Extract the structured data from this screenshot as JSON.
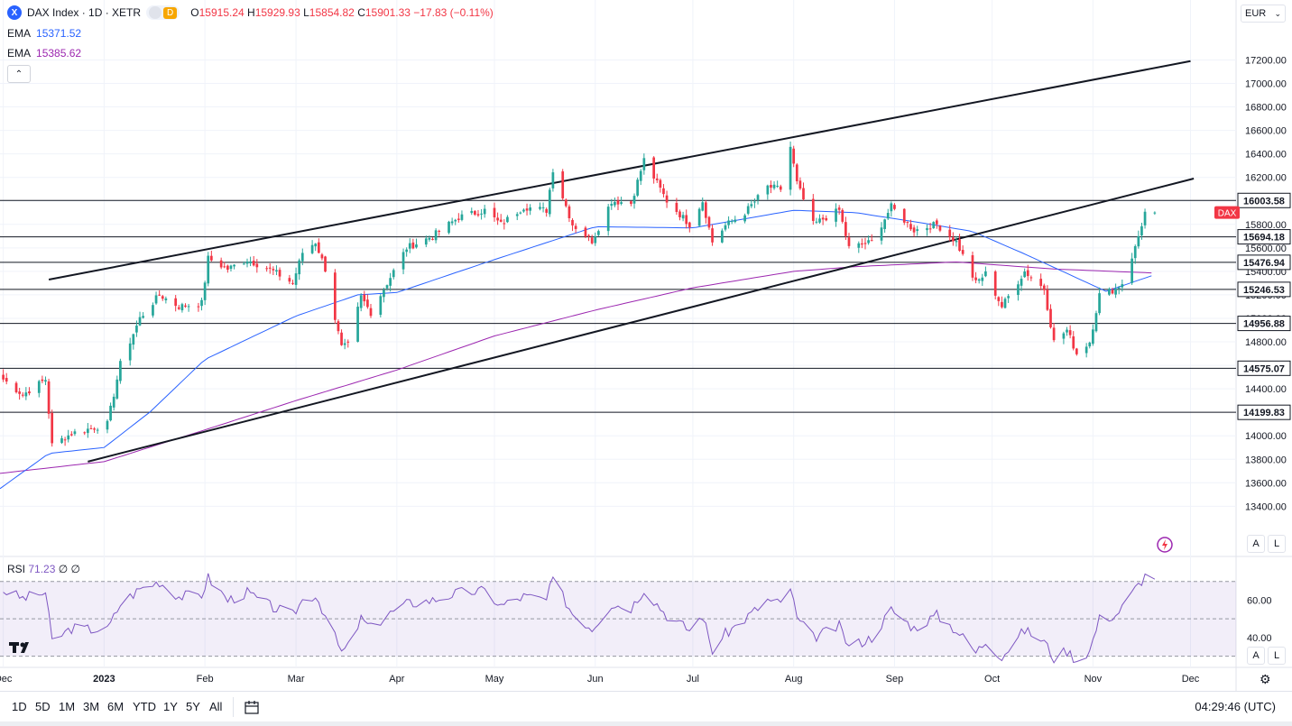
{
  "header": {
    "symbol": "DAX Index · 1D · XETR",
    "logo_letter": "X",
    "badge": "D",
    "ohlc": {
      "o_label": "O",
      "o": "15915.24",
      "h_label": "H",
      "h": "15929.93",
      "l_label": "L",
      "l": "15854.82",
      "c_label": "C",
      "c": "15901.33",
      "change": "−17.83 (−0.11%)"
    },
    "ema1": {
      "label": "EMA",
      "value": "15371.52"
    },
    "ema2": {
      "label": "EMA",
      "value": "15385.62"
    }
  },
  "currency": "EUR",
  "rsi": {
    "label": "RSI",
    "value": "71.23",
    "extra": "∅ ∅"
  },
  "scale_buttons": {
    "auto": "A",
    "log": "L"
  },
  "bottom_bar": {
    "ranges": [
      "1D",
      "5D",
      "1M",
      "3M",
      "6M",
      "YTD",
      "1Y",
      "5Y",
      "All"
    ],
    "time": "04:29:46 (UTC)"
  },
  "colors": {
    "up": "#26a69a",
    "down": "#f23645",
    "ema_fast": "#2962ff",
    "ema_slow": "#9c27b0",
    "rsi": "#7e57c2",
    "dax_tag": "#f23645"
  },
  "chart_data": {
    "type": "candlestick",
    "last_price_tag": "DAX",
    "y_ticks": [
      13400,
      13600,
      13800,
      14000,
      14200,
      14400,
      14600,
      14800,
      15000,
      15200,
      15400,
      15600,
      15800,
      16000,
      16200,
      16400,
      16600,
      16800,
      17000,
      17200
    ],
    "y_tick_labels": [
      "13400.00",
      "13600.00",
      "13800.00",
      "14000.00",
      "14200.00",
      "14400.00",
      "14600.00",
      "14800.00",
      "15000.00",
      "15200.00",
      "15400.00",
      "15600.00",
      "15800.00",
      "16000.00",
      "16200.00",
      "16400.00",
      "16600.00",
      "16800.00",
      "17000.00",
      "17200.00"
    ],
    "ylim": [
      13180,
      17480
    ],
    "x_labels": [
      "Dec",
      "2023",
      "Feb",
      "Mar",
      "Apr",
      "May",
      "Jun",
      "Jul",
      "Aug",
      "Sep",
      "Oct",
      "Nov",
      "Dec"
    ],
    "x_label_dates": [
      "2022-12-01",
      "2023-01-01",
      "2023-02-01",
      "2023-03-01",
      "2023-04-01",
      "2023-05-01",
      "2023-06-01",
      "2023-07-01",
      "2023-08-01",
      "2023-09-01",
      "2023-10-01",
      "2023-11-01",
      "2023-12-01"
    ],
    "xlim": [
      "2022-11-30",
      "2023-12-15"
    ],
    "horizontal_levels": [
      {
        "value": 16003.58,
        "label": "16003.58"
      },
      {
        "value": 15694.18,
        "label": "15694.18"
      },
      {
        "value": 15476.94,
        "label": "15476.94"
      },
      {
        "value": 15246.53,
        "label": "15246.53"
      },
      {
        "value": 14956.88,
        "label": "14956.88"
      },
      {
        "value": 14575.07,
        "label": "14575.07"
      },
      {
        "value": 14199.83,
        "label": "14199.83"
      }
    ],
    "trendlines": [
      {
        "from": [
          "2022-12-15",
          15330
        ],
        "to": [
          "2023-12-01",
          17190
        ]
      },
      {
        "from": [
          "2022-12-27",
          13780
        ],
        "to": [
          "2023-12-02",
          16190
        ]
      }
    ],
    "close_anchors": [
      [
        "2022-12-01",
        14480
      ],
      [
        "2022-12-07",
        14350
      ],
      [
        "2022-12-14",
        14480
      ],
      [
        "2022-12-16",
        13920
      ],
      [
        "2022-12-22",
        14020
      ],
      [
        "2023-01-02",
        14100
      ],
      [
        "2023-01-06",
        14610
      ],
      [
        "2023-01-12",
        15000
      ],
      [
        "2023-01-18",
        15200
      ],
      [
        "2023-01-24",
        15100
      ],
      [
        "2023-01-31",
        15130
      ],
      [
        "2023-02-02",
        15510
      ],
      [
        "2023-02-08",
        15420
      ],
      [
        "2023-02-14",
        15500
      ],
      [
        "2023-02-22",
        15400
      ],
      [
        "2023-02-28",
        15300
      ],
      [
        "2023-03-03",
        15560
      ],
      [
        "2023-03-07",
        15650
      ],
      [
        "2023-03-10",
        15420
      ],
      [
        "2023-03-13",
        15000
      ],
      [
        "2023-03-15",
        14750
      ],
      [
        "2023-03-17",
        14770
      ],
      [
        "2023-03-21",
        15180
      ],
      [
        "2023-03-24",
        15050
      ],
      [
        "2023-03-29",
        15300
      ],
      [
        "2023-04-04",
        15600
      ],
      [
        "2023-04-12",
        15700
      ],
      [
        "2023-04-20",
        15860
      ],
      [
        "2023-04-28",
        15920
      ],
      [
        "2023-05-03",
        15800
      ],
      [
        "2023-05-10",
        15950
      ],
      [
        "2023-05-17",
        15920
      ],
      [
        "2023-05-19",
        16270
      ],
      [
        "2023-05-25",
        15800
      ],
      [
        "2023-05-31",
        15660
      ],
      [
        "2023-06-06",
        16000
      ],
      [
        "2023-06-12",
        15980
      ],
      [
        "2023-06-16",
        16350
      ],
      [
        "2023-06-23",
        16000
      ],
      [
        "2023-06-30",
        15800
      ],
      [
        "2023-07-04",
        16000
      ],
      [
        "2023-07-07",
        15650
      ],
      [
        "2023-07-11",
        15790
      ],
      [
        "2023-07-17",
        15900
      ],
      [
        "2023-07-24",
        16120
      ],
      [
        "2023-07-28",
        16100
      ],
      [
        "2023-07-31",
        16460
      ],
      [
        "2023-08-02",
        16150
      ],
      [
        "2023-08-07",
        15800
      ],
      [
        "2023-08-15",
        15920
      ],
      [
        "2023-08-18",
        15600
      ],
      [
        "2023-08-25",
        15650
      ],
      [
        "2023-08-31",
        15950
      ],
      [
        "2023-09-07",
        15750
      ],
      [
        "2023-09-14",
        15800
      ],
      [
        "2023-09-20",
        15650
      ],
      [
        "2023-09-26",
        15300
      ],
      [
        "2023-09-29",
        15380
      ],
      [
        "2023-10-04",
        15100
      ],
      [
        "2023-10-11",
        15400
      ],
      [
        "2023-10-17",
        15250
      ],
      [
        "2023-10-20",
        14800
      ],
      [
        "2023-10-24",
        14900
      ],
      [
        "2023-10-27",
        14700
      ],
      [
        "2023-10-31",
        14800
      ],
      [
        "2023-11-03",
        15200
      ],
      [
        "2023-11-08",
        15250
      ],
      [
        "2023-11-10",
        15300
      ],
      [
        "2023-11-14",
        15600
      ],
      [
        "2023-11-17",
        15900
      ],
      [
        "2023-11-20",
        15901
      ]
    ],
    "ema_fast_anchors": [
      [
        "2022-11-30",
        13550
      ],
      [
        "2022-12-15",
        13850
      ],
      [
        "2023-01-01",
        13900
      ],
      [
        "2023-01-15",
        14200
      ],
      [
        "2023-02-01",
        14650
      ],
      [
        "2023-03-01",
        15020
      ],
      [
        "2023-03-20",
        15200
      ],
      [
        "2023-04-01",
        15220
      ],
      [
        "2023-05-01",
        15500
      ],
      [
        "2023-06-01",
        15780
      ],
      [
        "2023-07-01",
        15770
      ],
      [
        "2023-08-01",
        15920
      ],
      [
        "2023-08-20",
        15900
      ],
      [
        "2023-09-10",
        15810
      ],
      [
        "2023-09-25",
        15740
      ],
      [
        "2023-10-10",
        15560
      ],
      [
        "2023-10-25",
        15370
      ],
      [
        "2023-11-05",
        15230
      ],
      [
        "2023-11-20",
        15371.52
      ]
    ],
    "ema_slow_anchors": [
      [
        "2022-11-30",
        13680
      ],
      [
        "2023-01-01",
        13780
      ],
      [
        "2023-02-01",
        14050
      ],
      [
        "2023-03-01",
        14300
      ],
      [
        "2023-04-01",
        14560
      ],
      [
        "2023-05-01",
        14850
      ],
      [
        "2023-06-01",
        15070
      ],
      [
        "2023-07-01",
        15260
      ],
      [
        "2023-08-01",
        15400
      ],
      [
        "2023-08-20",
        15440
      ],
      [
        "2023-09-20",
        15480
      ],
      [
        "2023-10-20",
        15420
      ],
      [
        "2023-11-20",
        15385.62
      ]
    ],
    "rsi": {
      "ylim": [
        25,
        80
      ],
      "band": [
        30,
        70
      ],
      "mid": 50,
      "tick_labels": [
        {
          "value": 60,
          "label": "60.00"
        },
        {
          "value": 40,
          "label": "40.00"
        }
      ],
      "anchors": [
        [
          "2022-11-30",
          66
        ],
        [
          "2022-12-07",
          61
        ],
        [
          "2022-12-14",
          64
        ],
        [
          "2022-12-16",
          38
        ],
        [
          "2022-12-22",
          45
        ],
        [
          "2023-01-02",
          44
        ],
        [
          "2023-01-06",
          58
        ],
        [
          "2023-01-12",
          66
        ],
        [
          "2023-01-18",
          70
        ],
        [
          "2023-01-24",
          62
        ],
        [
          "2023-01-31",
          63
        ],
        [
          "2023-02-02",
          72
        ],
        [
          "2023-02-08",
          60
        ],
        [
          "2023-02-14",
          64
        ],
        [
          "2023-02-22",
          56
        ],
        [
          "2023-02-28",
          52
        ],
        [
          "2023-03-03",
          60
        ],
        [
          "2023-03-07",
          63
        ],
        [
          "2023-03-10",
          52
        ],
        [
          "2023-03-13",
          40
        ],
        [
          "2023-03-15",
          32
        ],
        [
          "2023-03-17",
          35
        ],
        [
          "2023-03-21",
          50
        ],
        [
          "2023-03-24",
          45
        ],
        [
          "2023-03-29",
          52
        ],
        [
          "2023-04-04",
          58
        ],
        [
          "2023-04-12",
          60
        ],
        [
          "2023-04-20",
          64
        ],
        [
          "2023-04-28",
          65
        ],
        [
          "2023-05-03",
          57
        ],
        [
          "2023-05-10",
          62
        ],
        [
          "2023-05-17",
          60
        ],
        [
          "2023-05-19",
          71
        ],
        [
          "2023-05-25",
          53
        ],
        [
          "2023-05-31",
          45
        ],
        [
          "2023-06-06",
          58
        ],
        [
          "2023-06-12",
          56
        ],
        [
          "2023-06-16",
          66
        ],
        [
          "2023-06-23",
          52
        ],
        [
          "2023-06-30",
          44
        ],
        [
          "2023-07-04",
          52
        ],
        [
          "2023-07-07",
          33
        ],
        [
          "2023-07-11",
          42
        ],
        [
          "2023-07-17",
          50
        ],
        [
          "2023-07-24",
          60
        ],
        [
          "2023-07-28",
          58
        ],
        [
          "2023-07-31",
          67
        ],
        [
          "2023-08-02",
          50
        ],
        [
          "2023-08-07",
          40
        ],
        [
          "2023-08-15",
          46
        ],
        [
          "2023-08-18",
          35
        ],
        [
          "2023-08-25",
          40
        ],
        [
          "2023-08-31",
          55
        ],
        [
          "2023-09-07",
          45
        ],
        [
          "2023-09-14",
          52
        ],
        [
          "2023-09-20",
          44
        ],
        [
          "2023-09-26",
          32
        ],
        [
          "2023-09-29",
          38
        ],
        [
          "2023-10-04",
          30
        ],
        [
          "2023-10-11",
          44
        ],
        [
          "2023-10-17",
          38
        ],
        [
          "2023-10-20",
          29
        ],
        [
          "2023-10-24",
          33
        ],
        [
          "2023-10-27",
          28
        ],
        [
          "2023-10-31",
          33
        ],
        [
          "2023-11-03",
          50
        ],
        [
          "2023-11-08",
          52
        ],
        [
          "2023-11-10",
          56
        ],
        [
          "2023-11-14",
          66
        ],
        [
          "2023-11-17",
          73
        ],
        [
          "2023-11-20",
          71.23
        ]
      ]
    }
  }
}
